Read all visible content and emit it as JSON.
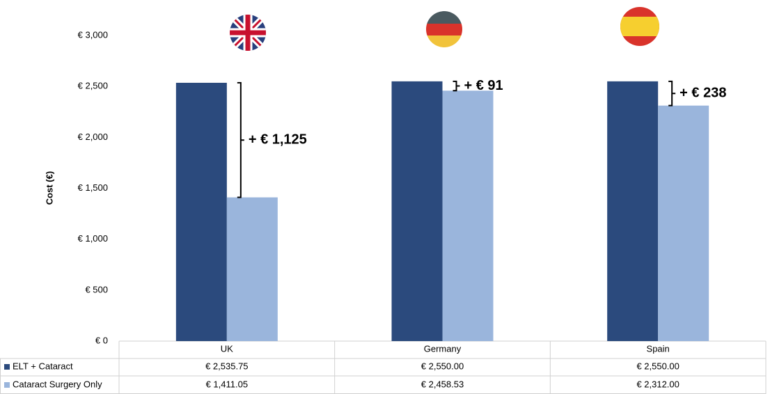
{
  "chart_data": {
    "type": "bar",
    "y_label": "Cost (€)",
    "categories": [
      "UK",
      "Germany",
      "Spain"
    ],
    "series": [
      {
        "name": "ELT + Cataract",
        "color": "#2b4a7d",
        "values": [
          2535.75,
          2550.0,
          2550.0
        ],
        "value_labels": [
          "€ 2,535.75",
          "€ 2,550.00",
          "€ 2,550.00"
        ]
      },
      {
        "name": "Cataract Surgery Only",
        "color": "#9ab5dc",
        "values": [
          1411.05,
          2458.53,
          2312.0
        ],
        "value_labels": [
          "€ 1,411.05",
          "€ 2,458.53",
          "€ 2,312.00"
        ]
      }
    ],
    "differences": {
      "values": [
        1125,
        91,
        238
      ],
      "value_labels": [
        "+ € 1,125",
        "+ € 91",
        "+ € 238"
      ]
    },
    "ylim": [
      0,
      3000
    ],
    "yticks": [
      {
        "value": 0,
        "label": "€ 0"
      },
      {
        "value": 500,
        "label": "€ 500"
      },
      {
        "value": 1000,
        "label": "€ 1,000"
      },
      {
        "value": 1500,
        "label": "€ 1,500"
      },
      {
        "value": 2000,
        "label": "€ 2,000"
      },
      {
        "value": 2500,
        "label": "€ 2,500"
      },
      {
        "value": 3000,
        "label": "€ 3,000"
      }
    ],
    "grid": false
  }
}
